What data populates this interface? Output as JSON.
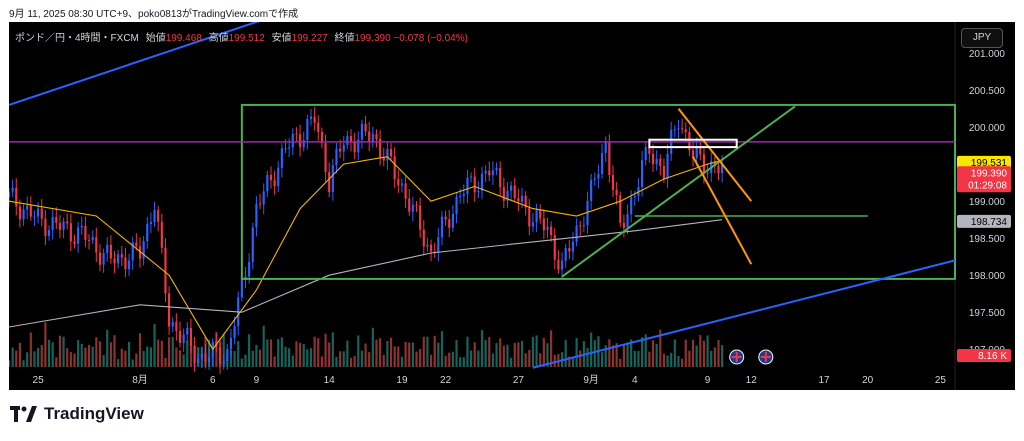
{
  "caption": "9月 11, 2025 08:30 UTC+9、poko0813がTradingView.comで作成",
  "brand": "TradingView",
  "currency_button": "JPY",
  "legend": {
    "symbol": "ポンド／円・4時間・FXCM",
    "open_label": "始値",
    "open": "199.468",
    "high_label": "高値",
    "high": "199.512",
    "low_label": "安値",
    "low": "199.227",
    "close_label": "終値",
    "close": "199.390",
    "change": "−0.078 (−0.04%)"
  },
  "colors": {
    "background": "#000000",
    "candle_up": "#2962ff",
    "candle_down": "#f23645",
    "vol_up": "#26a69a",
    "vol_down": "#ef5350",
    "ma_short": "#f5b400",
    "ma_long": "#b2b5be",
    "range_box": "#4caf50",
    "resistance": "#9c27b0",
    "channel": "#2962ff",
    "trend": "#4caf50",
    "wedge": "#ff9800"
  },
  "chart_data": {
    "type": "candlestick",
    "title": "",
    "y_axis": {
      "ylim": [
        196.76,
        201.42
      ],
      "ticks": [
        "201.000",
        "200.500",
        "200.000",
        "199.500",
        "199.000",
        "198.500",
        "198.000",
        "197.500",
        "197.000"
      ]
    },
    "x_axis": {
      "xlim": [
        "2025-07-23",
        "2025-09-26"
      ],
      "ticks": [
        {
          "date": "2025-07-25",
          "label": "25"
        },
        {
          "date": "2025-08-01",
          "label": "8月"
        },
        {
          "date": "2025-08-06",
          "label": "6"
        },
        {
          "date": "2025-08-09",
          "label": "9"
        },
        {
          "date": "2025-08-14",
          "label": "14"
        },
        {
          "date": "2025-08-19",
          "label": "19"
        },
        {
          "date": "2025-08-22",
          "label": "22"
        },
        {
          "date": "2025-08-27",
          "label": "27"
        },
        {
          "date": "2025-09-01",
          "label": "9月"
        },
        {
          "date": "2025-09-04",
          "label": "4"
        },
        {
          "date": "2025-09-09",
          "label": "9"
        },
        {
          "date": "2025-09-12",
          "label": "12"
        },
        {
          "date": "2025-09-17",
          "label": "17"
        },
        {
          "date": "2025-09-20",
          "label": "20"
        },
        {
          "date": "2025-09-25",
          "label": "25"
        }
      ]
    },
    "price_path": [
      [
        "2025-07-23",
        199.05
      ],
      [
        "2025-07-25",
        198.75
      ],
      [
        "2025-07-28",
        198.55
      ],
      [
        "2025-07-30",
        198.2
      ],
      [
        "2025-08-01",
        198.3
      ],
      [
        "2025-08-02",
        199.0
      ],
      [
        "2025-08-03",
        197.4
      ],
      [
        "2025-08-05",
        196.9
      ],
      [
        "2025-08-07",
        196.95
      ],
      [
        "2025-08-08",
        197.8
      ],
      [
        "2025-08-09",
        198.9
      ],
      [
        "2025-08-11",
        199.7
      ],
      [
        "2025-08-13",
        200.1
      ],
      [
        "2025-08-14",
        199.3
      ],
      [
        "2025-08-15",
        199.8
      ],
      [
        "2025-08-17",
        199.9
      ],
      [
        "2025-08-19",
        199.2
      ],
      [
        "2025-08-21",
        198.3
      ],
      [
        "2025-08-23",
        199.1
      ],
      [
        "2025-08-25",
        199.4
      ],
      [
        "2025-08-27",
        199.0
      ],
      [
        "2025-08-29",
        198.6
      ],
      [
        "2025-08-30",
        198.1
      ],
      [
        "2025-09-01",
        199.1
      ],
      [
        "2025-09-02",
        199.8
      ],
      [
        "2025-09-03",
        198.6
      ],
      [
        "2025-09-05",
        199.7
      ],
      [
        "2025-09-06",
        199.4
      ],
      [
        "2025-09-07",
        200.15
      ],
      [
        "2025-09-08",
        199.6
      ],
      [
        "2025-09-10",
        199.4
      ]
    ],
    "sma_short": [
      [
        "2025-07-23",
        199.0
      ],
      [
        "2025-07-29",
        198.8
      ],
      [
        "2025-08-03",
        198.0
      ],
      [
        "2025-08-06",
        197.0
      ],
      [
        "2025-08-09",
        197.8
      ],
      [
        "2025-08-12",
        198.9
      ],
      [
        "2025-08-15",
        199.5
      ],
      [
        "2025-08-18",
        199.6
      ],
      [
        "2025-08-21",
        199.0
      ],
      [
        "2025-08-24",
        199.2
      ],
      [
        "2025-08-28",
        198.9
      ],
      [
        "2025-08-31",
        198.8
      ],
      [
        "2025-09-03",
        199.0
      ],
      [
        "2025-09-06",
        199.3
      ],
      [
        "2025-09-09",
        199.5
      ],
      [
        "2025-09-10",
        199.55
      ]
    ],
    "sma_long": [
      [
        "2025-07-23",
        197.3
      ],
      [
        "2025-08-01",
        197.6
      ],
      [
        "2025-08-08",
        197.5
      ],
      [
        "2025-08-14",
        198.0
      ],
      [
        "2025-08-21",
        198.3
      ],
      [
        "2025-08-28",
        198.45
      ],
      [
        "2025-09-04",
        198.6
      ],
      [
        "2025-09-10",
        198.75
      ]
    ],
    "volume_path": [
      0.35,
      0.45,
      0.3,
      0.5,
      0.25,
      0.4,
      0.65,
      0.3,
      0.55,
      0.75,
      0.9,
      0.5,
      0.6,
      0.45,
      0.7,
      0.55,
      0.4,
      0.6,
      0.35,
      0.5,
      0.45,
      0.6,
      0.7,
      0.4,
      0.55,
      0.65,
      0.5,
      0.8,
      0.45,
      0.7
    ],
    "horizontal_lines": [
      {
        "price": 199.8,
        "color": "#9c27b0"
      },
      {
        "price": 198.8,
        "color": "#4caf50",
        "from": "2025-09-04",
        "to": "2025-09-20"
      }
    ],
    "range_box": {
      "from": "2025-08-08",
      "to": "2025-09-26",
      "top": 200.3,
      "bottom": 197.95
    },
    "trend_lines": [
      {
        "color": "#2962ff",
        "p1": [
          "2025-07-23",
          200.3
        ],
        "p2": [
          "2025-08-14",
          201.75
        ]
      },
      {
        "color": "#2962ff",
        "p1": [
          "2025-08-28",
          196.75
        ],
        "p2": [
          "2025-09-26",
          198.2
        ]
      },
      {
        "color": "#4caf50",
        "p1": [
          "2025-08-30",
          197.98
        ],
        "p2": [
          "2025-09-15",
          200.28
        ]
      },
      {
        "color": "#ff9800",
        "p1": [
          "2025-09-07",
          200.25
        ],
        "p2": [
          "2025-09-12",
          199.0
        ]
      },
      {
        "color": "#ff9800",
        "p1": [
          "2025-09-08",
          199.6
        ],
        "p2": [
          "2025-09-12",
          198.15
        ]
      }
    ],
    "rectangle": {
      "from": "2025-09-05",
      "to": "2025-09-11",
      "top": 199.83,
      "bottom": 199.73,
      "color": "#ffffff"
    },
    "price_labels": [
      {
        "price": 199.531,
        "text": "199.531",
        "bg": "#fbe600",
        "fg": "#000000"
      },
      {
        "price": 199.39,
        "text": "199.390",
        "sub": "01:29:08",
        "bg": "#f23645",
        "fg": "#ffffff"
      },
      {
        "price": 198.734,
        "text": "198.734",
        "bg": "#b2b5be",
        "fg": "#000000"
      }
    ],
    "volume_label": "8.16 K",
    "event_markers": [
      "2025-09-11",
      "2025-09-13"
    ]
  }
}
